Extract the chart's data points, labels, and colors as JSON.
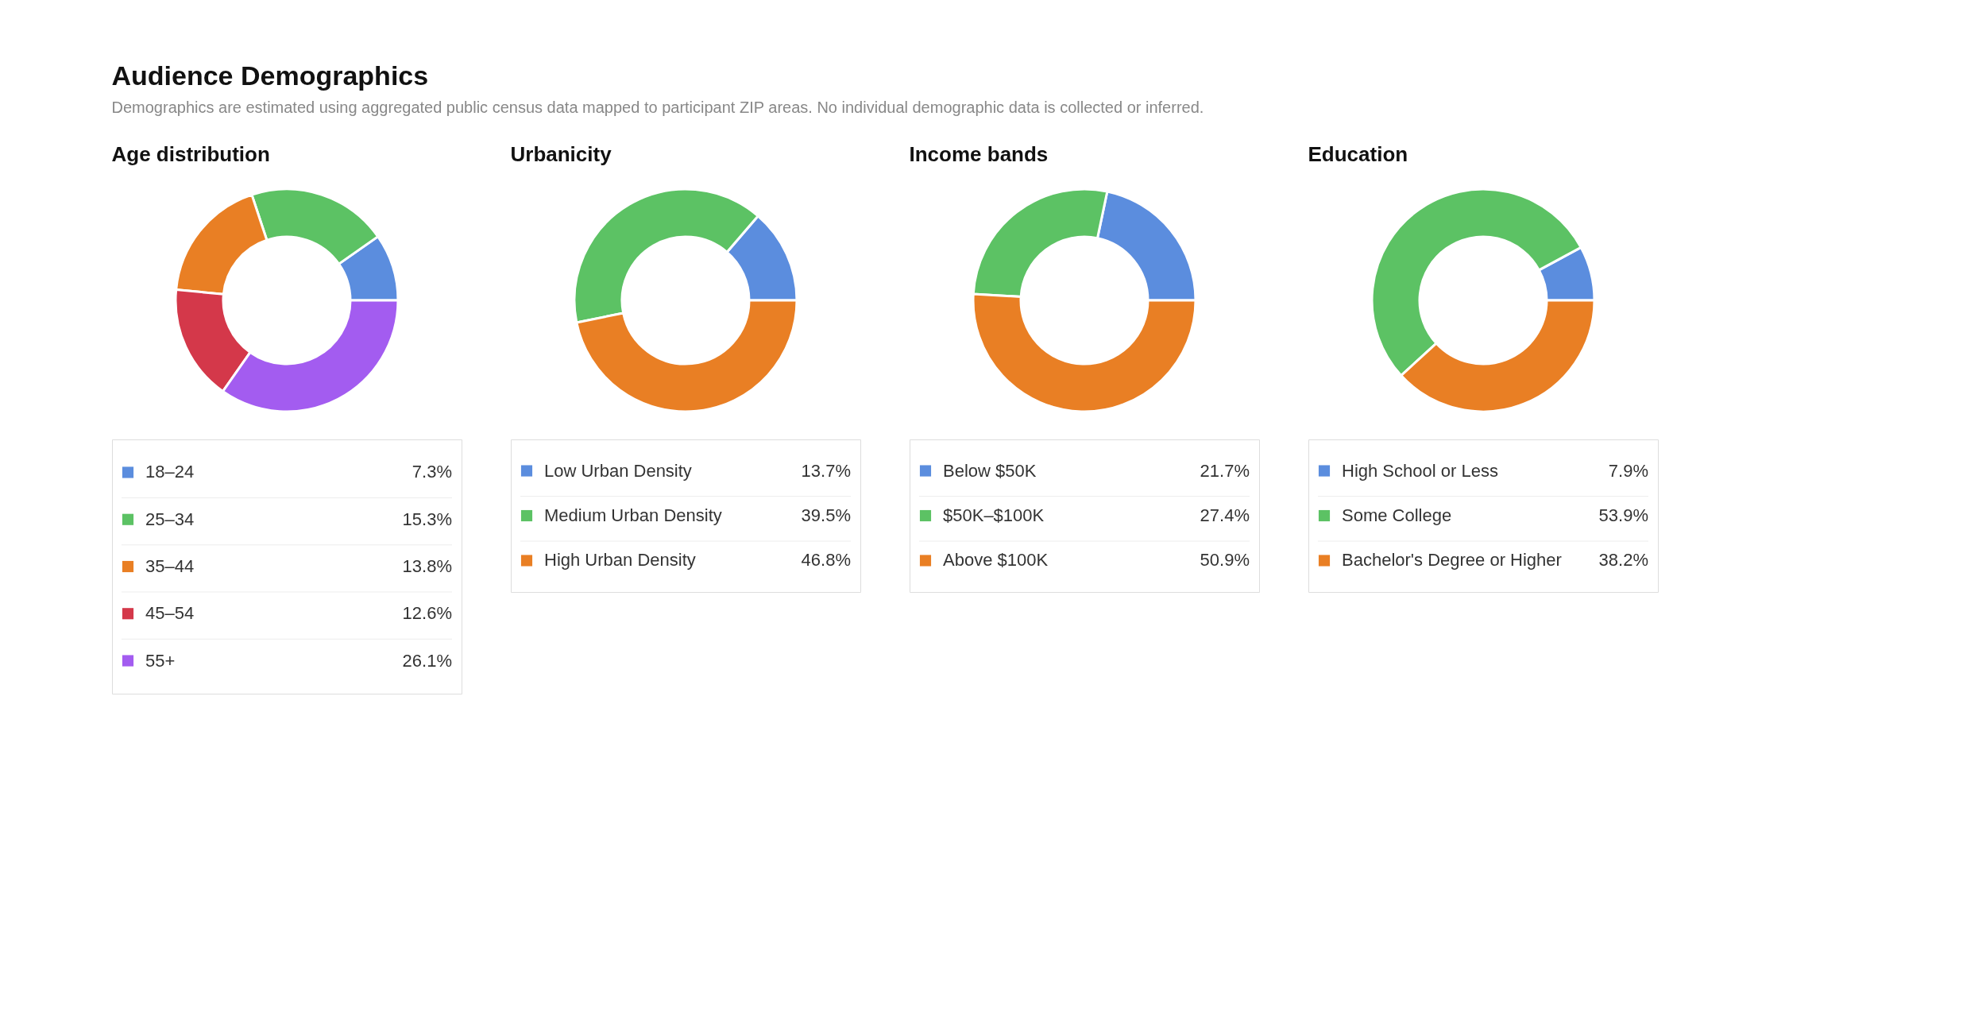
{
  "chart_data": [
    {
      "type": "other",
      "title": "Audience Demographics",
      "subtitle": "Demographics are estimated using aggregated public census data mapped to participant ZIP areas. No individual demographic data is collected or inferred."
    },
    {
      "type": "donut",
      "title": "Age distribution",
      "categories": [
        "18–24",
        "25–34",
        "35–44",
        "45–54",
        "55+"
      ],
      "values": [
        7.3,
        15.3,
        13.8,
        12.6,
        26.1
      ],
      "colors": [
        "#5b8dde",
        "#5cc264",
        "#e97f24",
        "#d4384a",
        "#a35cf0"
      ],
      "value_labels": [
        "7.3%",
        "15.3%",
        "13.8%",
        "12.6%",
        "26.1%"
      ],
      "legend": "bottom"
    },
    {
      "type": "donut",
      "title": "Urbanicity",
      "categories": [
        "Low Urban Density",
        "Medium Urban Density",
        "High Urban Density"
      ],
      "values": [
        13.7,
        39.5,
        46.8
      ],
      "colors": [
        "#5b8dde",
        "#5cc264",
        "#e97f24"
      ],
      "value_labels": [
        "13.7%",
        "39.5%",
        "46.8%"
      ],
      "legend": "bottom"
    },
    {
      "type": "donut",
      "title": "Income bands",
      "categories": [
        "Below $50K",
        "$50K–$100K",
        "Above $100K"
      ],
      "values": [
        21.7,
        27.4,
        50.9
      ],
      "colors": [
        "#5b8dde",
        "#5cc264",
        "#e97f24"
      ],
      "value_labels": [
        "21.7%",
        "27.4%",
        "50.9%"
      ],
      "legend": "bottom"
    },
    {
      "type": "donut",
      "title": "Education",
      "categories": [
        "High School or Less",
        "Some College",
        "Bachelor's Degree or Higher"
      ],
      "values": [
        7.9,
        53.9,
        38.2
      ],
      "colors": [
        "#5b8dde",
        "#5cc264",
        "#e97f24"
      ],
      "value_labels": [
        "7.9%",
        "53.9%",
        "38.2%"
      ],
      "legend": "bottom"
    }
  ]
}
